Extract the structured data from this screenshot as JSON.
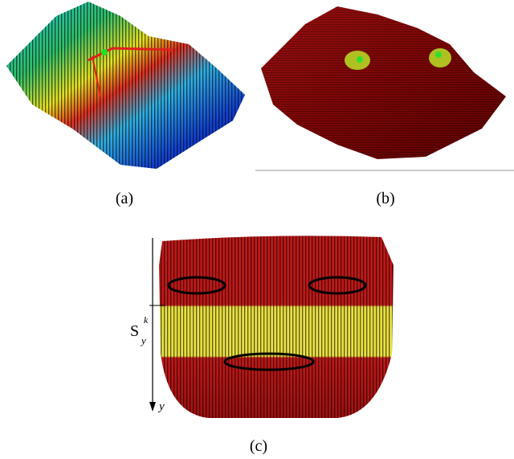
{
  "panels": [
    {
      "caption": "(a)"
    },
    {
      "caption": "(b)"
    },
    {
      "caption": "(c)",
      "band_label": {
        "base": "S",
        "subscript": "y",
        "superscript": "k"
      },
      "axis_label": "y"
    }
  ]
}
